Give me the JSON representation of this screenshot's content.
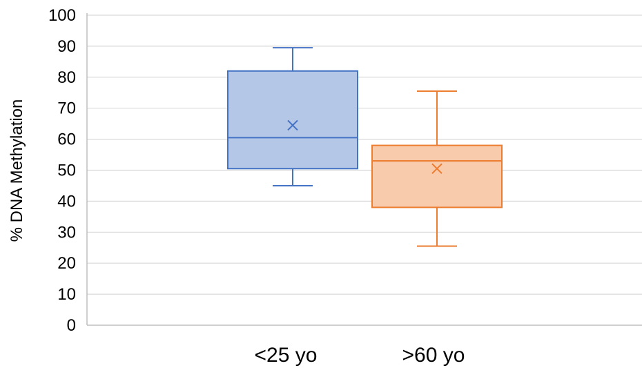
{
  "chart_data": {
    "type": "box",
    "title": "",
    "xlabel": "",
    "ylabel": "% DNA Methylation",
    "ylim": [
      0,
      100
    ],
    "yticks": [
      0,
      10,
      20,
      30,
      40,
      50,
      60,
      70,
      80,
      90,
      100
    ],
    "grid": true,
    "legend": "none",
    "categories": [
      "<25 yo",
      ">60 yo"
    ],
    "series": [
      {
        "category": "<25 yo",
        "color_fill": "#b4c7e7",
        "color_stroke": "#4472c4",
        "min": 45,
        "q1": 50.5,
        "median": 60.5,
        "q3": 82,
        "max": 89.5,
        "mean": 64.5
      },
      {
        "category": ">60 yo",
        "color_fill": "#f8cbad",
        "color_stroke": "#ed7d31",
        "min": 25.5,
        "q1": 38,
        "median": 53,
        "q3": 58,
        "max": 75.5,
        "mean": 50.5
      }
    ],
    "gridline_color": "#d9d9d9",
    "axis_color": "#bfbfbf"
  }
}
